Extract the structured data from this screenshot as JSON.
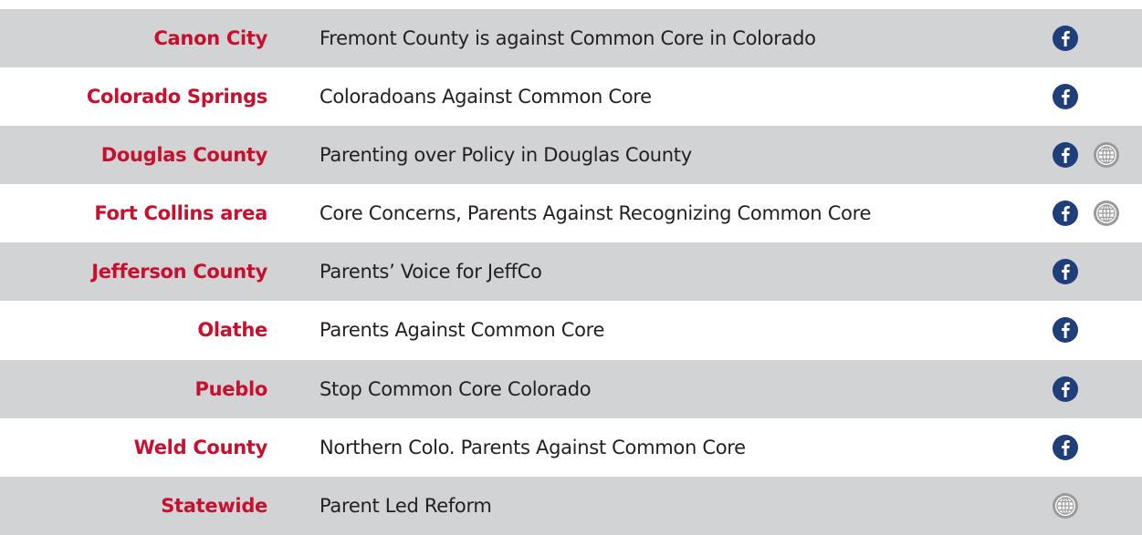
{
  "rows": [
    {
      "location": "Canon City",
      "group": "Fremont County is against Common Core in Colorado"
    },
    {
      "location": "Colorado Springs",
      "group": "Coloradoans Against Common Core"
    },
    {
      "location": "Douglas County",
      "group": "Parenting over Policy in Douglas County"
    },
    {
      "location": "Fort Collins area",
      "group": "Core Concerns, Parents Against Recognizing Common Core"
    },
    {
      "location": "Jefferson County",
      "group": "Parents’ Voice for JeffCo"
    },
    {
      "location": "Olathe",
      "group": "Parents Against Common Core"
    },
    {
      "location": "Pueblo",
      "group": "Stop Common Core Colorado"
    },
    {
      "location": "Weld County",
      "group": "Northern Colo. Parents Against Common Core"
    },
    {
      "location": "Statewide",
      "group": "Parent Led Reform"
    }
  ]
}
